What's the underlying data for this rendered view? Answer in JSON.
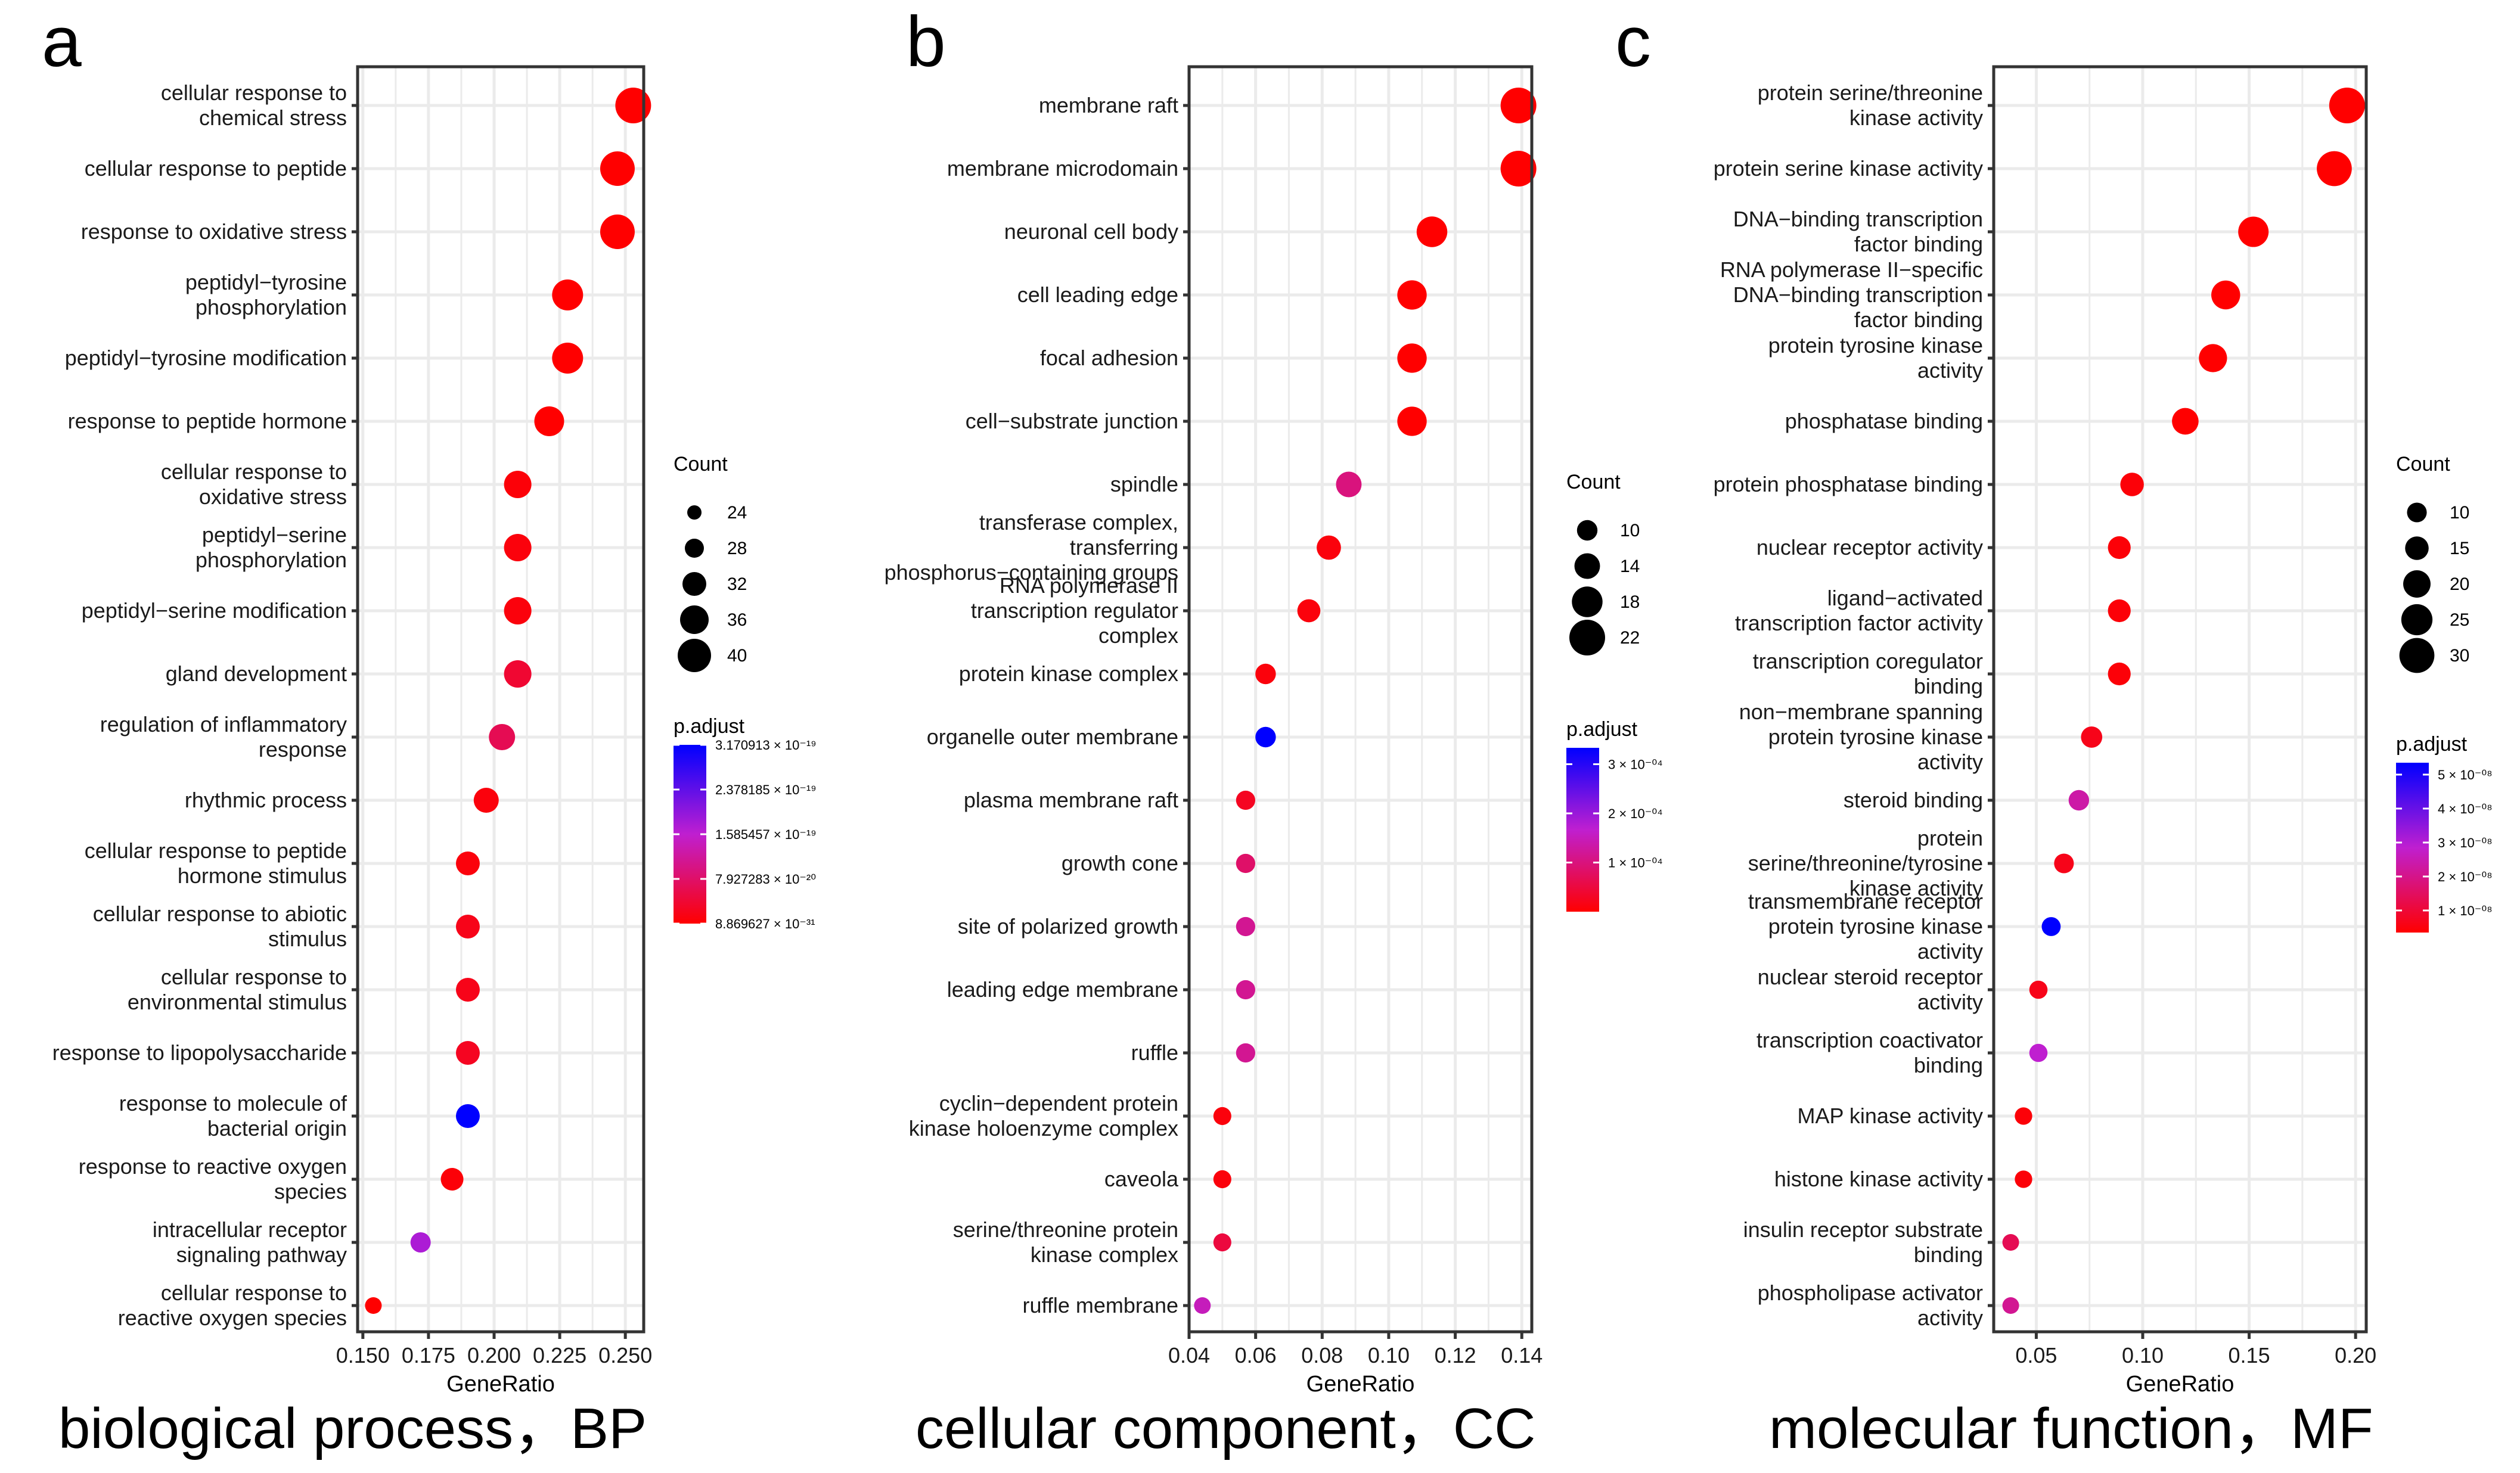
{
  "panels": [
    {
      "letter": "a",
      "caption": "biological process，BP"
    },
    {
      "letter": "b",
      "caption": "cellular component，CC"
    },
    {
      "letter": "c",
      "caption": "molecular function，MF"
    }
  ],
  "colors": {
    "low": "#ff0000",
    "mid": "#bf1fd0",
    "high": "#0000ff",
    "grid": "#ebebeb",
    "axis": "#333333"
  },
  "chart_data": [
    {
      "type": "scatter",
      "title": "biological process，BP",
      "xlabel": "GeneRatio",
      "xlim": [
        0.148,
        0.257
      ],
      "xticks": [
        0.15,
        0.175,
        0.2,
        0.225,
        0.25
      ],
      "xtick_labels": [
        "0.150",
        "0.175",
        "0.200",
        "0.225",
        "0.250"
      ],
      "categories": [
        "cellular response to\nchemical stress",
        "cellular response to peptide",
        "response to oxidative stress",
        "peptidyl−tyrosine\nphosphorylation",
        "peptidyl−tyrosine modification",
        "response to peptide hormone",
        "cellular response to\noxidative stress",
        "peptidyl−serine\nphosphorylation",
        "peptidyl−serine modification",
        "gland development",
        "regulation of inflammatory\nresponse",
        "rhythmic process",
        "cellular response to peptide\nhormone stimulus",
        "cellular response to abiotic\nstimulus",
        "cellular response to\nenvironmental stimulus",
        "response to lipopolysaccharide",
        "response to molecule of\nbacterial origin",
        "response to reactive oxygen\nspecies",
        "intracellular receptor\nsignaling pathway",
        "cellular response to\nreactive oxygen species"
      ],
      "x": [
        0.253,
        0.247,
        0.247,
        0.228,
        0.228,
        0.221,
        0.209,
        0.209,
        0.209,
        0.209,
        0.203,
        0.197,
        0.19,
        0.19,
        0.19,
        0.19,
        0.19,
        0.184,
        0.172,
        0.154
      ],
      "count": [
        42,
        41,
        41,
        38,
        38,
        37,
        35,
        35,
        35,
        35,
        34,
        33,
        32,
        32,
        32,
        32,
        32,
        31,
        29,
        26
      ],
      "color": [
        0.0,
        0.0,
        0.0,
        0.0,
        0.0,
        0.0,
        0.02,
        0.03,
        0.03,
        0.12,
        0.2,
        0.03,
        0.03,
        0.06,
        0.06,
        0.08,
        1.0,
        0.02,
        0.55,
        0.0
      ],
      "size_legend": {
        "title": "Count",
        "values": [
          24,
          28,
          32,
          36,
          40
        ],
        "labels": [
          "24",
          "28",
          "32",
          "36",
          "40"
        ]
      },
      "color_legend": {
        "title": "p.adjust",
        "labels": [
          "3.170913 × 10⁻¹⁹",
          "2.378185 × 10⁻¹⁹",
          "1.585457 × 10⁻¹⁹",
          "7.927283 × 10⁻²⁰",
          "8.869627 × 10⁻³¹"
        ],
        "positions": [
          1.0,
          0.75,
          0.5,
          0.25,
          0.0
        ]
      }
    },
    {
      "type": "scatter",
      "title": "cellular component，CC",
      "xlabel": "GeneRatio",
      "xlim": [
        0.04,
        0.143
      ],
      "xticks": [
        0.04,
        0.06,
        0.08,
        0.1,
        0.12,
        0.14
      ],
      "xtick_labels": [
        "0.04",
        "0.06",
        "0.08",
        "0.10",
        "0.12",
        "0.14"
      ],
      "categories": [
        "membrane raft",
        "membrane microdomain",
        "neuronal cell body",
        "cell leading edge",
        "focal adhesion",
        "cell−substrate junction",
        "spindle",
        "transferase complex,\ntransferring\nphosphorus−containing groups",
        "RNA polymerase II\ntranscription regulator\ncomplex",
        "protein kinase complex",
        "organelle outer membrane",
        "plasma membrane raft",
        "growth cone",
        "site of polarized growth",
        "leading edge membrane",
        "ruffle",
        "cyclin−dependent protein\nkinase holoenzyme complex",
        "caveola",
        "serine/threonine protein\nkinase complex",
        "ruffle membrane"
      ],
      "x": [
        0.139,
        0.139,
        0.113,
        0.107,
        0.107,
        0.107,
        0.088,
        0.082,
        0.076,
        0.063,
        0.063,
        0.057,
        0.057,
        0.057,
        0.057,
        0.057,
        0.05,
        0.05,
        0.05,
        0.044
      ],
      "count": [
        22,
        22,
        18,
        17,
        17,
        17,
        14,
        13,
        12,
        10,
        10,
        9,
        9,
        9,
        9,
        9,
        8,
        8,
        8,
        7
      ],
      "color": [
        0.0,
        0.0,
        0.0,
        0.0,
        0.0,
        0.0,
        0.3,
        0.03,
        0.03,
        0.03,
        1.0,
        0.08,
        0.25,
        0.35,
        0.35,
        0.35,
        0.03,
        0.03,
        0.15,
        0.45
      ],
      "size_legend": {
        "title": "Count",
        "values": [
          10,
          14,
          18,
          22
        ],
        "labels": [
          "10",
          "14",
          "18",
          "22"
        ]
      },
      "color_legend": {
        "title": "p.adjust",
        "labels": [
          "3 × 10⁻⁰⁴",
          "2 × 10⁻⁰⁴",
          "1 × 10⁻⁰⁴"
        ],
        "positions": [
          0.9,
          0.6,
          0.3
        ]
      }
    },
    {
      "type": "scatter",
      "title": "molecular function，MF",
      "xlabel": "GeneRatio",
      "xlim": [
        0.03,
        0.205
      ],
      "xticks": [
        0.05,
        0.1,
        0.15,
        0.2
      ],
      "xtick_labels": [
        "0.05",
        "0.10",
        "0.15",
        "0.20"
      ],
      "categories": [
        "protein serine/threonine\nkinase activity",
        "protein serine kinase activity",
        "DNA−binding transcription\nfactor binding",
        "RNA polymerase II−specific\nDNA−binding transcription\nfactor binding",
        "protein tyrosine kinase\nactivity",
        "phosphatase binding",
        "protein phosphatase binding",
        "nuclear receptor activity",
        "ligand−activated\ntranscription factor activity",
        "transcription coregulator\nbinding",
        "non−membrane spanning\nprotein tyrosine kinase\nactivity",
        "steroid binding",
        "protein\nserine/threonine/tyrosine\nkinase activity",
        "transmembrane receptor\nprotein tyrosine kinase\nactivity",
        "nuclear steroid receptor\nactivity",
        "transcription coactivator\nbinding",
        "MAP kinase activity",
        "histone kinase activity",
        "insulin receptor substrate\nbinding",
        "phospholipase activator\nactivity"
      ],
      "x": [
        0.196,
        0.19,
        0.152,
        0.139,
        0.133,
        0.12,
        0.095,
        0.089,
        0.089,
        0.089,
        0.076,
        0.07,
        0.063,
        0.057,
        0.051,
        0.051,
        0.044,
        0.044,
        0.038,
        0.038
      ],
      "count": [
        31,
        30,
        24,
        22,
        21,
        19,
        15,
        14,
        14,
        14,
        12,
        11,
        10,
        9,
        8,
        8,
        7,
        7,
        6,
        6
      ],
      "color": [
        0.0,
        0.0,
        0.0,
        0.0,
        0.0,
        0.0,
        0.02,
        0.02,
        0.02,
        0.02,
        0.06,
        0.4,
        0.06,
        1.0,
        0.06,
        0.5,
        0.02,
        0.02,
        0.2,
        0.35
      ],
      "size_legend": {
        "title": "Count",
        "values": [
          10,
          15,
          20,
          25,
          30
        ],
        "labels": [
          "10",
          "15",
          "20",
          "25",
          "30"
        ]
      },
      "color_legend": {
        "title": "p.adjust",
        "labels": [
          "5 × 10⁻⁰⁸",
          "4 × 10⁻⁰⁸",
          "3 × 10⁻⁰⁸",
          "2 × 10⁻⁰⁸",
          "1 × 10⁻⁰⁸"
        ],
        "positions": [
          0.93,
          0.73,
          0.53,
          0.33,
          0.13
        ]
      }
    }
  ]
}
